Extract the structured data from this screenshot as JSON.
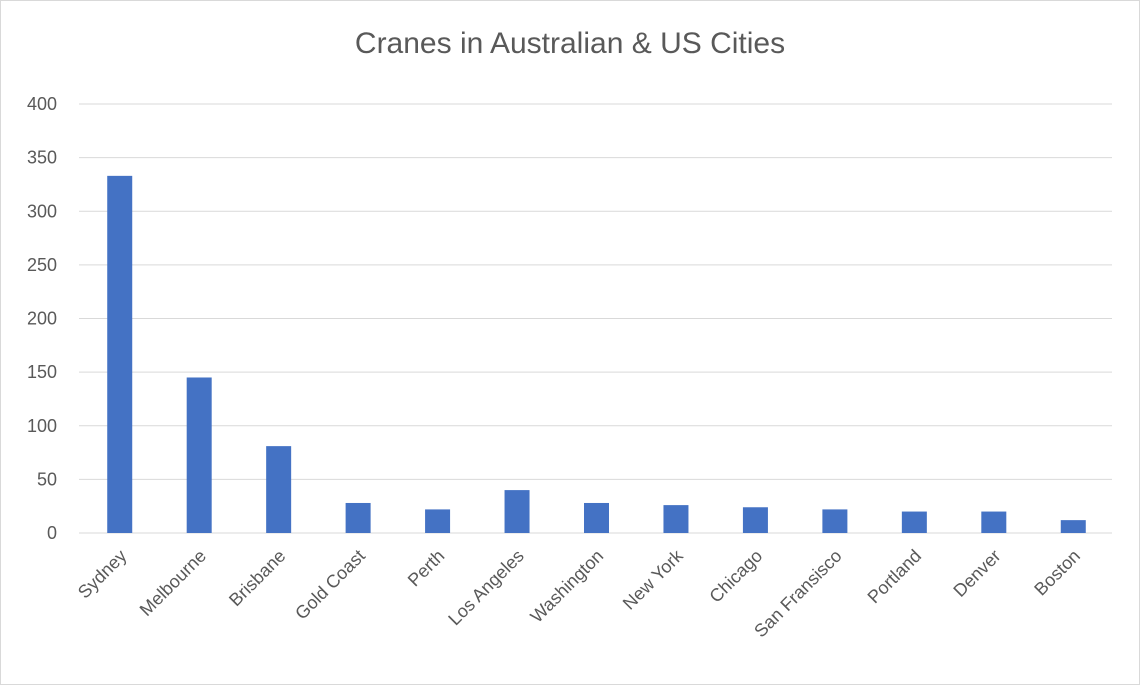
{
  "chart_data": {
    "type": "bar",
    "title": "Cranes in Australian & US Cities",
    "xlabel": "",
    "ylabel": "",
    "categories": [
      "Sydney",
      "Melbourne",
      "Brisbane",
      "Gold Coast",
      "Perth",
      "Los Angeles",
      "Washington",
      "New York",
      "Chicago",
      "San Fransisco",
      "Portland",
      "Denver",
      "Boston"
    ],
    "values": [
      333,
      145,
      81,
      28,
      22,
      40,
      28,
      26,
      24,
      22,
      20,
      20,
      12
    ],
    "ylim": [
      0,
      400
    ],
    "yticks": [
      "0",
      "50",
      "100",
      "150",
      "200",
      "250",
      "300",
      "350",
      "400"
    ],
    "grid": true,
    "legend": "none",
    "bar_color": "#4472c4",
    "grid_color": "#d9d9d9"
  }
}
